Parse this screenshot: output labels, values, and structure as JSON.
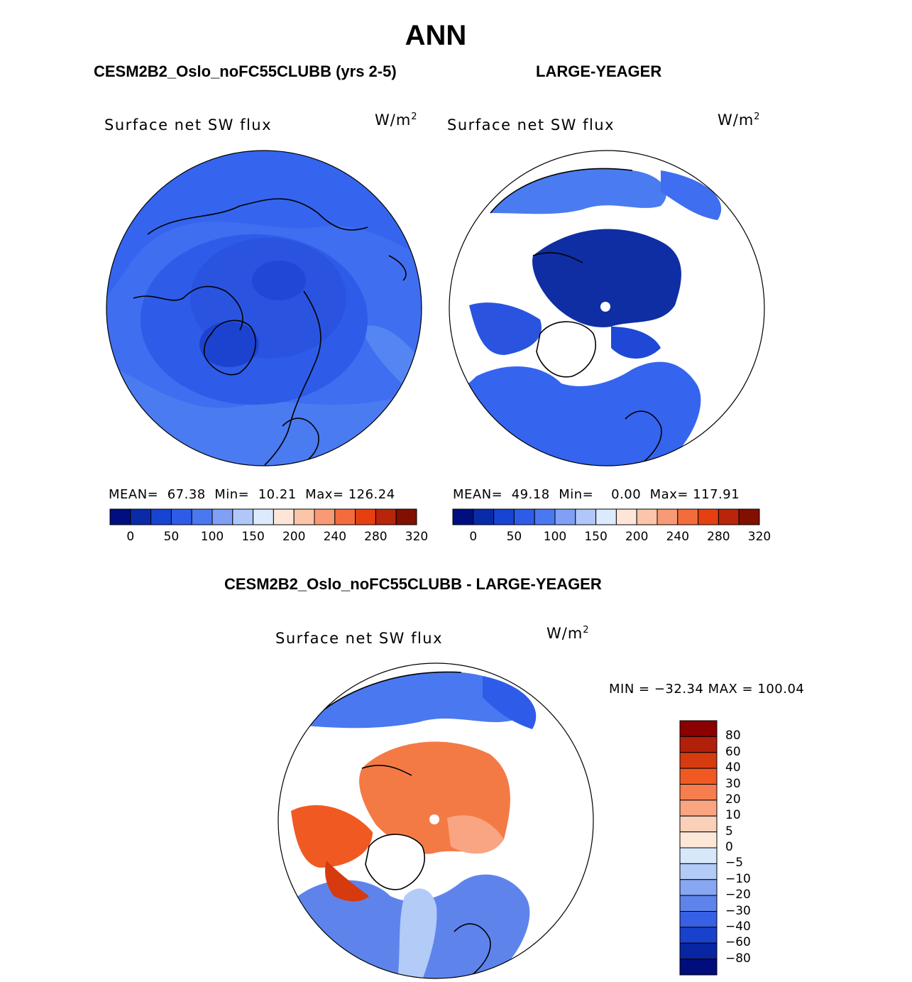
{
  "title": "ANN",
  "panels": [
    {
      "subtitle": "CESM2B2_Oslo_noFC55CLUBB (yrs 2-5)",
      "label": "Surface net SW flux",
      "units_base": "W/m",
      "units_exp": "2",
      "stats": {
        "mean_label": "MEAN=",
        "mean": "67.38",
        "min_label": "Min=",
        "min": "10.21",
        "max_label": "Max=",
        "max": "126.24"
      }
    },
    {
      "subtitle": "LARGE-YEAGER",
      "label": "Surface net SW flux",
      "units_base": "W/m",
      "units_exp": "2",
      "stats": {
        "mean_label": "MEAN=",
        "mean": "49.18",
        "min_label": "Min=",
        "min": "0.00",
        "max_label": "Max=",
        "max": "117.91"
      }
    }
  ],
  "diff_panel": {
    "subtitle": "CESM2B2_Oslo_noFC55CLUBB - LARGE-YEAGER",
    "label": "Surface net SW flux",
    "units_base": "W/m",
    "units_exp": "2",
    "minmax": "MIN = −32.34 MAX = 100.04"
  },
  "chart_data": [
    {
      "type": "polar contour map",
      "title": "CESM2B2_Oslo_noFC55CLUBB (yrs 2-5)",
      "variable": "Surface net SW flux",
      "units": "W/m2",
      "mean": 67.38,
      "min": 10.21,
      "max": 126.24,
      "colorbar_levels": [
        0,
        25,
        50,
        75,
        100,
        125,
        150,
        175,
        200,
        220,
        240,
        260,
        280,
        300,
        320
      ],
      "colorbar_tick_labels": [
        "0",
        "50",
        "100",
        "150",
        "200",
        "240",
        "280",
        "320"
      ],
      "colors": [
        "#000f80",
        "#0a2ba8",
        "#1745d2",
        "#2e5ce8",
        "#4a78f0",
        "#7fa0f5",
        "#b0c7fa",
        "#dbeafd",
        "#fde6d8",
        "#fbc5a9",
        "#f79a75",
        "#f36d3c",
        "#e64010",
        "#b8250a",
        "#821000"
      ]
    },
    {
      "type": "polar contour map",
      "title": "LARGE-YEAGER",
      "variable": "Surface net SW flux",
      "units": "W/m2",
      "mean": 49.18,
      "min": 0.0,
      "max": 117.91,
      "colorbar_levels": [
        0,
        25,
        50,
        75,
        100,
        125,
        150,
        175,
        200,
        220,
        240,
        260,
        280,
        300,
        320
      ],
      "colorbar_tick_labels": [
        "0",
        "50",
        "100",
        "150",
        "200",
        "240",
        "280",
        "320"
      ],
      "colors": [
        "#000f80",
        "#0a2ba8",
        "#1745d2",
        "#2e5ce8",
        "#4a78f0",
        "#7fa0f5",
        "#b0c7fa",
        "#dbeafd",
        "#fde6d8",
        "#fbc5a9",
        "#f79a75",
        "#f36d3c",
        "#e64010",
        "#b8250a",
        "#821000"
      ]
    },
    {
      "type": "polar contour map",
      "title": "CESM2B2_Oslo_noFC55CLUBB - LARGE-YEAGER",
      "variable": "Surface net SW flux",
      "units": "W/m2",
      "min": -32.34,
      "max": 100.04,
      "colorbar_tick_labels": [
        "80",
        "60",
        "40",
        "30",
        "20",
        "10",
        "5",
        "0",
        "−5",
        "−10",
        "−20",
        "−30",
        "−40",
        "−60",
        "−80"
      ],
      "colors_top_to_bottom": [
        "#8b0000",
        "#b2200a",
        "#d63a0f",
        "#f05a22",
        "#f67d4e",
        "#f9a582",
        "#fbd0b8",
        "#fde8d8",
        "#d8e8fb",
        "#b2cbf7",
        "#87a7f2",
        "#5e84ec",
        "#3760e4",
        "#1942cc",
        "#0826a4",
        "#000d7a"
      ]
    }
  ]
}
